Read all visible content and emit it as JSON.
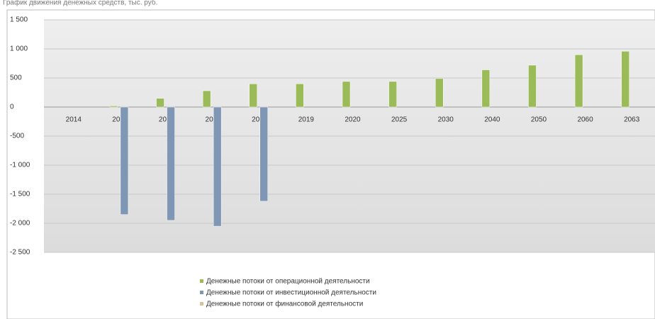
{
  "chart_data": {
    "type": "bar",
    "title": "График движения денежных средств, тыс. руб.",
    "categories": [
      "2014",
      "2015",
      "2016",
      "2017",
      "2018",
      "2019",
      "2020",
      "2025",
      "2030",
      "2040",
      "2050",
      "2060",
      "2063"
    ],
    "series": [
      {
        "name": "Денежные потоки от операционной деятельности",
        "color": "#9bbb59",
        "values": [
          0,
          20,
          150,
          280,
          400,
          400,
          440,
          440,
          490,
          640,
          720,
          900,
          960
        ]
      },
      {
        "name": "Денежные потоки от инвестиционной деятельности",
        "color": "#7f96b4",
        "values": [
          0,
          -1850,
          -1950,
          -2050,
          -1620,
          0,
          0,
          0,
          0,
          0,
          0,
          0,
          0
        ]
      },
      {
        "name": "Денежные потоки от финансовой деятельности",
        "color": "#d9c29a",
        "values": [
          0,
          0,
          0,
          0,
          0,
          0,
          0,
          0,
          0,
          0,
          0,
          0,
          0
        ]
      }
    ],
    "ylim": [
      -2500,
      1500
    ],
    "yticks": [
      {
        "value": 1500,
        "label": "1 500"
      },
      {
        "value": 1000,
        "label": "1 000"
      },
      500,
      0,
      -500,
      {
        "value": -1000,
        "label": "-1 000"
      },
      {
        "value": -1500,
        "label": "-1 500"
      },
      {
        "value": -2000,
        "label": "-2 000"
      },
      {
        "value": -2500,
        "label": "-2 500"
      }
    ],
    "grid": true
  }
}
